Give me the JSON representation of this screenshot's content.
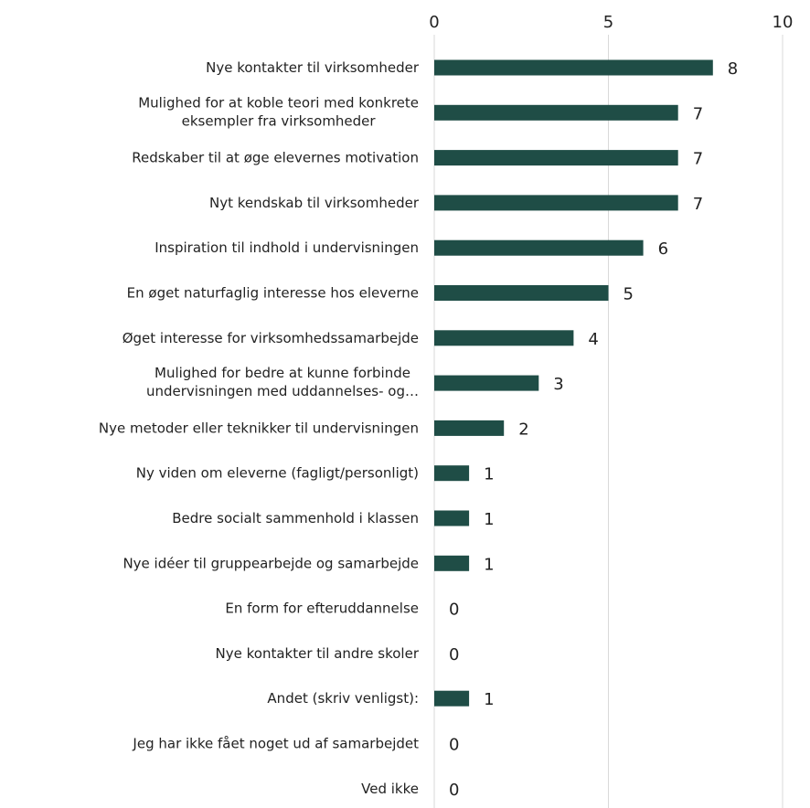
{
  "chart_data": {
    "type": "bar",
    "orientation": "horizontal",
    "title": "",
    "xlabel": "",
    "ylabel": "",
    "xlim": [
      0,
      10
    ],
    "x_ticks": [
      0,
      5,
      10
    ],
    "x_tick_labels": [
      "0",
      "5",
      "10"
    ],
    "x_axis_position": "top",
    "grid": true,
    "bar_color": "#1f4d46",
    "categories": [
      [
        "Nye kontakter til virksomheder"
      ],
      [
        "Mulighed for at koble teori med konkrete",
        "eksempler fra virksomheder"
      ],
      [
        "Redskaber til at øge elevernes motivation"
      ],
      [
        "Nyt kendskab til virksomheder"
      ],
      [
        "Inspiration til indhold i undervisningen"
      ],
      [
        "En øget naturfaglig interesse hos eleverne"
      ],
      [
        "Øget interesse for virksomhedssamarbejde"
      ],
      [
        "Mulighed for bedre at kunne forbinde",
        "undervisningen med uddannelses- og…"
      ],
      [
        "Nye metoder eller teknikker til undervisningen"
      ],
      [
        "Ny viden om eleverne (fagligt/personligt)"
      ],
      [
        "Bedre socialt sammenhold i klassen"
      ],
      [
        "Nye idéer til gruppearbejde og samarbejde"
      ],
      [
        "En form for efteruddannelse"
      ],
      [
        "Nye kontakter til andre skoler"
      ],
      [
        "Andet (skriv venligst):"
      ],
      [
        "Jeg har ikke fået noget ud af samarbejdet"
      ],
      [
        "Ved ikke"
      ]
    ],
    "values": [
      8,
      7,
      7,
      7,
      6,
      5,
      4,
      3,
      2,
      1,
      1,
      1,
      0,
      0,
      1,
      0,
      0
    ],
    "value_labels": [
      "8",
      "7",
      "7",
      "7",
      "6",
      "5",
      "4",
      "3",
      "2",
      "1",
      "1",
      "1",
      "0",
      "0",
      "1",
      "0",
      "0"
    ]
  }
}
